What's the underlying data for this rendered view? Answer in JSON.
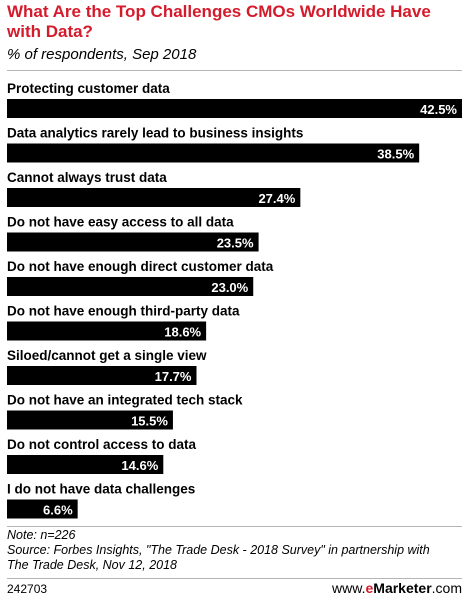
{
  "title": "What Are the Top Challenges CMOs Worldwide Have with Data?",
  "subtitle": "% of respondents, Sep 2018",
  "note": "Note: n=226",
  "source_line1": "Source: Forbes Insights, \"The Trade Desk - 2018 Survey\" in partnership with",
  "source_line2": "The Trade Desk, Nov 12, 2018",
  "chart_id": "242703",
  "logo": {
    "prefix": "www.",
    "brand": "eMarketer",
    "suffix": ".com",
    "accent_color": "#d41b2c"
  },
  "chart_data": {
    "type": "bar",
    "orientation": "horizontal",
    "categories": [
      "Protecting customer data",
      "Data analytics rarely lead to business insights",
      "Cannot always trust data",
      "Do not have easy access to all data",
      "Do not have enough direct customer data",
      "Do not have enough third-party data",
      "Siloed/cannot get a single view",
      "Do not have an integrated tech stack",
      "Do not control access to data",
      "I do not have data challenges"
    ],
    "values": [
      42.5,
      38.5,
      27.4,
      23.5,
      23.0,
      18.6,
      17.7,
      15.5,
      14.6,
      6.6
    ],
    "value_labels": [
      "42.5%",
      "38.5%",
      "27.4%",
      "23.5%",
      "23.0%",
      "18.6%",
      "17.7%",
      "15.5%",
      "14.6%",
      "6.6%"
    ],
    "xlim": [
      0,
      42.5
    ],
    "bar_color": "#000000",
    "grid": false,
    "legend": "none"
  }
}
